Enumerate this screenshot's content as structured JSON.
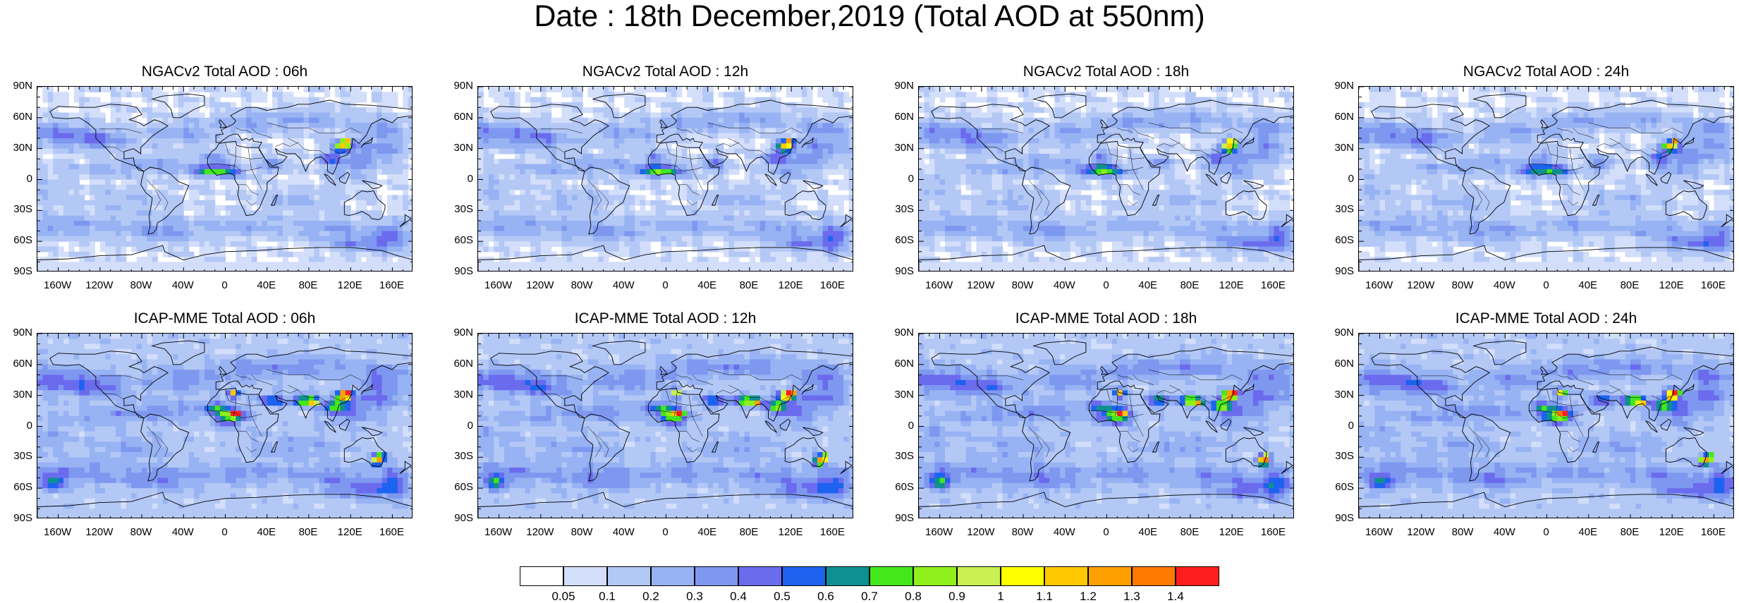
{
  "title": "Date : 18th December,2019 (Total AOD at 550nm)",
  "lat_labels": [
    "90N",
    "60N",
    "30N",
    "0",
    "30S",
    "60S",
    "90S"
  ],
  "lon_labels": [
    "160W",
    "120W",
    "80W",
    "40W",
    "0",
    "40E",
    "80E",
    "120E",
    "160E"
  ],
  "lon_values": [
    -160,
    -120,
    -80,
    -40,
    0,
    40,
    80,
    120,
    160
  ],
  "lat_values": [
    90,
    60,
    30,
    0,
    -30,
    -60,
    -90
  ],
  "panels": [
    {
      "title": "NGACv2 Total AOD : 06h",
      "model": "NGACv2",
      "hour": "06h"
    },
    {
      "title": "NGACv2 Total AOD : 12h",
      "model": "NGACv2",
      "hour": "12h"
    },
    {
      "title": "NGACv2 Total AOD : 18h",
      "model": "NGACv2",
      "hour": "18h"
    },
    {
      "title": "NGACv2 Total AOD : 24h",
      "model": "NGACv2",
      "hour": "24h"
    },
    {
      "title": "ICAP-MME Total AOD : 06h",
      "model": "ICAP-MME",
      "hour": "06h"
    },
    {
      "title": "ICAP-MME Total AOD : 12h",
      "model": "ICAP-MME",
      "hour": "12h"
    },
    {
      "title": "ICAP-MME Total AOD : 18h",
      "model": "ICAP-MME",
      "hour": "18h"
    },
    {
      "title": "ICAP-MME Total AOD : 24h",
      "model": "ICAP-MME",
      "hour": "24h"
    }
  ],
  "colorbar": {
    "colors": [
      "#ffffff",
      "#d3defa",
      "#b4c8f6",
      "#98b3f3",
      "#7e98f0",
      "#6b6bee",
      "#1d63f0",
      "#0f9090",
      "#44e61c",
      "#8ff01c",
      "#c8f050",
      "#ffff00",
      "#ffc800",
      "#ffa000",
      "#ff7800",
      "#ff1e1e"
    ],
    "labels": [
      "0.05",
      "0.1",
      "0.2",
      "0.3",
      "0.4",
      "0.5",
      "0.6",
      "0.7",
      "0.8",
      "0.9",
      "1",
      "1.1",
      "1.2",
      "1.3",
      "1.4"
    ]
  }
}
